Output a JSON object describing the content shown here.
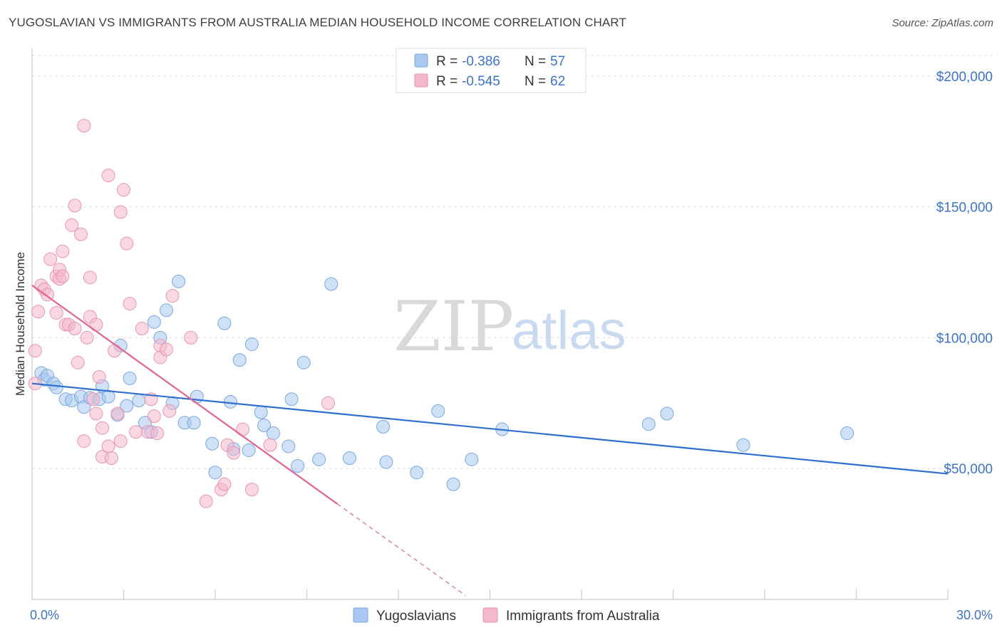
{
  "header": {
    "title": "YUGOSLAVIAN VS IMMIGRANTS FROM AUSTRALIA MEDIAN HOUSEHOLD INCOME CORRELATION CHART",
    "source": "Source: ZipAtlas.com"
  },
  "watermark": {
    "zip": "ZIP",
    "atlas": "atlas"
  },
  "chart_data": {
    "type": "scatter",
    "ylabel": "Median Household Income",
    "xlim": [
      0,
      30
    ],
    "ylim": [
      0,
      210000
    ],
    "x_tick_labels": [
      {
        "value": 0,
        "label": "0.0%"
      },
      {
        "value": 30,
        "label": "30.0%"
      }
    ],
    "y_tick_labels": [
      {
        "value": 50000,
        "label": "$50,000"
      },
      {
        "value": 100000,
        "label": "$100,000"
      },
      {
        "value": 150000,
        "label": "$150,000"
      },
      {
        "value": 200000,
        "label": "$200,000"
      }
    ],
    "grid": true,
    "legend_position": "top-center",
    "legend": [
      {
        "r_label": "R =",
        "r_value": "-0.386",
        "n_label": "N =",
        "n_value": "57",
        "color": "#a8c8f0"
      },
      {
        "r_label": "R =",
        "r_value": "-0.545",
        "n_label": "N =",
        "n_value": "62",
        "color": "#f4b8cb"
      }
    ],
    "series": [
      {
        "name": "Yugoslavians",
        "color": "#a8c8f0",
        "stroke": "#7aa7e0",
        "trend_color": "#2f6fcf",
        "trend": {
          "x0": 0,
          "y0": 82500,
          "x1": 30,
          "y1": 48000
        },
        "points": [
          [
            0.3,
            86500
          ],
          [
            0.4,
            84000
          ],
          [
            0.5,
            85500
          ],
          [
            0.7,
            82500
          ],
          [
            0.8,
            81000
          ],
          [
            1.1,
            76500
          ],
          [
            1.3,
            76000
          ],
          [
            1.6,
            77500
          ],
          [
            1.7,
            73500
          ],
          [
            1.9,
            77000
          ],
          [
            2.2,
            76500
          ],
          [
            2.3,
            81500
          ],
          [
            2.5,
            77500
          ],
          [
            2.8,
            70500
          ],
          [
            2.9,
            97000
          ],
          [
            3.1,
            74000
          ],
          [
            3.2,
            84500
          ],
          [
            3.5,
            76000
          ],
          [
            3.7,
            67500
          ],
          [
            3.9,
            64000
          ],
          [
            4.0,
            106000
          ],
          [
            4.2,
            100000
          ],
          [
            4.4,
            110500
          ],
          [
            4.6,
            75000
          ],
          [
            4.8,
            121500
          ],
          [
            5.0,
            67500
          ],
          [
            5.3,
            67500
          ],
          [
            5.4,
            77500
          ],
          [
            5.9,
            59500
          ],
          [
            6.0,
            48500
          ],
          [
            6.3,
            105500
          ],
          [
            6.5,
            75500
          ],
          [
            6.6,
            57500
          ],
          [
            6.8,
            91500
          ],
          [
            7.1,
            57000
          ],
          [
            7.2,
            97500
          ],
          [
            7.5,
            71500
          ],
          [
            7.6,
            66500
          ],
          [
            7.9,
            63500
          ],
          [
            8.4,
            58500
          ],
          [
            8.5,
            76500
          ],
          [
            8.7,
            51000
          ],
          [
            8.9,
            90500
          ],
          [
            9.4,
            53500
          ],
          [
            9.8,
            120500
          ],
          [
            10.4,
            54000
          ],
          [
            11.5,
            66000
          ],
          [
            11.6,
            52500
          ],
          [
            12.6,
            48500
          ],
          [
            13.3,
            72000
          ],
          [
            13.8,
            44000
          ],
          [
            14.4,
            53500
          ],
          [
            15.4,
            65000
          ],
          [
            20.2,
            67000
          ],
          [
            20.8,
            71000
          ],
          [
            23.3,
            59000
          ],
          [
            26.7,
            63500
          ]
        ]
      },
      {
        "name": "Immigrants from Australia",
        "color": "#f4b8cb",
        "stroke": "#e995b0",
        "trend_color": "#e0668f",
        "trend": {
          "x0": 0,
          "y0": 120000,
          "x1": 10,
          "y1": 36500
        },
        "trend_dashed": {
          "x0": 10,
          "y0": 36500,
          "x1": 14.2,
          "y1": 1500
        },
        "points": [
          [
            0.1,
            95000
          ],
          [
            0.1,
            82500
          ],
          [
            0.2,
            110000
          ],
          [
            0.3,
            120000
          ],
          [
            0.4,
            118500
          ],
          [
            0.5,
            116500
          ],
          [
            0.6,
            130000
          ],
          [
            0.8,
            109500
          ],
          [
            0.8,
            123500
          ],
          [
            0.9,
            122500
          ],
          [
            0.9,
            126000
          ],
          [
            1.0,
            133000
          ],
          [
            1.0,
            123500
          ],
          [
            1.1,
            105000
          ],
          [
            1.2,
            105000
          ],
          [
            1.3,
            143000
          ],
          [
            1.4,
            150500
          ],
          [
            1.4,
            103500
          ],
          [
            1.5,
            90500
          ],
          [
            1.6,
            139500
          ],
          [
            1.7,
            60500
          ],
          [
            1.7,
            181000
          ],
          [
            1.8,
            100000
          ],
          [
            1.9,
            108000
          ],
          [
            1.9,
            123000
          ],
          [
            2.0,
            76500
          ],
          [
            2.1,
            105000
          ],
          [
            2.1,
            71000
          ],
          [
            2.2,
            85000
          ],
          [
            2.3,
            65500
          ],
          [
            2.3,
            54500
          ],
          [
            2.5,
            162000
          ],
          [
            2.5,
            58500
          ],
          [
            2.6,
            54000
          ],
          [
            2.7,
            95000
          ],
          [
            2.8,
            71000
          ],
          [
            2.9,
            60500
          ],
          [
            2.9,
            148000
          ],
          [
            3.0,
            156500
          ],
          [
            3.1,
            136000
          ],
          [
            3.2,
            113000
          ],
          [
            3.4,
            64000
          ],
          [
            3.6,
            103500
          ],
          [
            3.8,
            64000
          ],
          [
            3.9,
            76500
          ],
          [
            4.0,
            70000
          ],
          [
            4.1,
            63500
          ],
          [
            4.2,
            92500
          ],
          [
            4.2,
            97000
          ],
          [
            4.4,
            95500
          ],
          [
            4.5,
            72000
          ],
          [
            4.6,
            116000
          ],
          [
            5.2,
            100000
          ],
          [
            5.7,
            37500
          ],
          [
            6.2,
            42000
          ],
          [
            6.3,
            44000
          ],
          [
            6.4,
            59000
          ],
          [
            6.6,
            56000
          ],
          [
            6.9,
            65000
          ],
          [
            7.2,
            42000
          ],
          [
            7.8,
            59000
          ],
          [
            9.7,
            75000
          ]
        ]
      }
    ]
  }
}
